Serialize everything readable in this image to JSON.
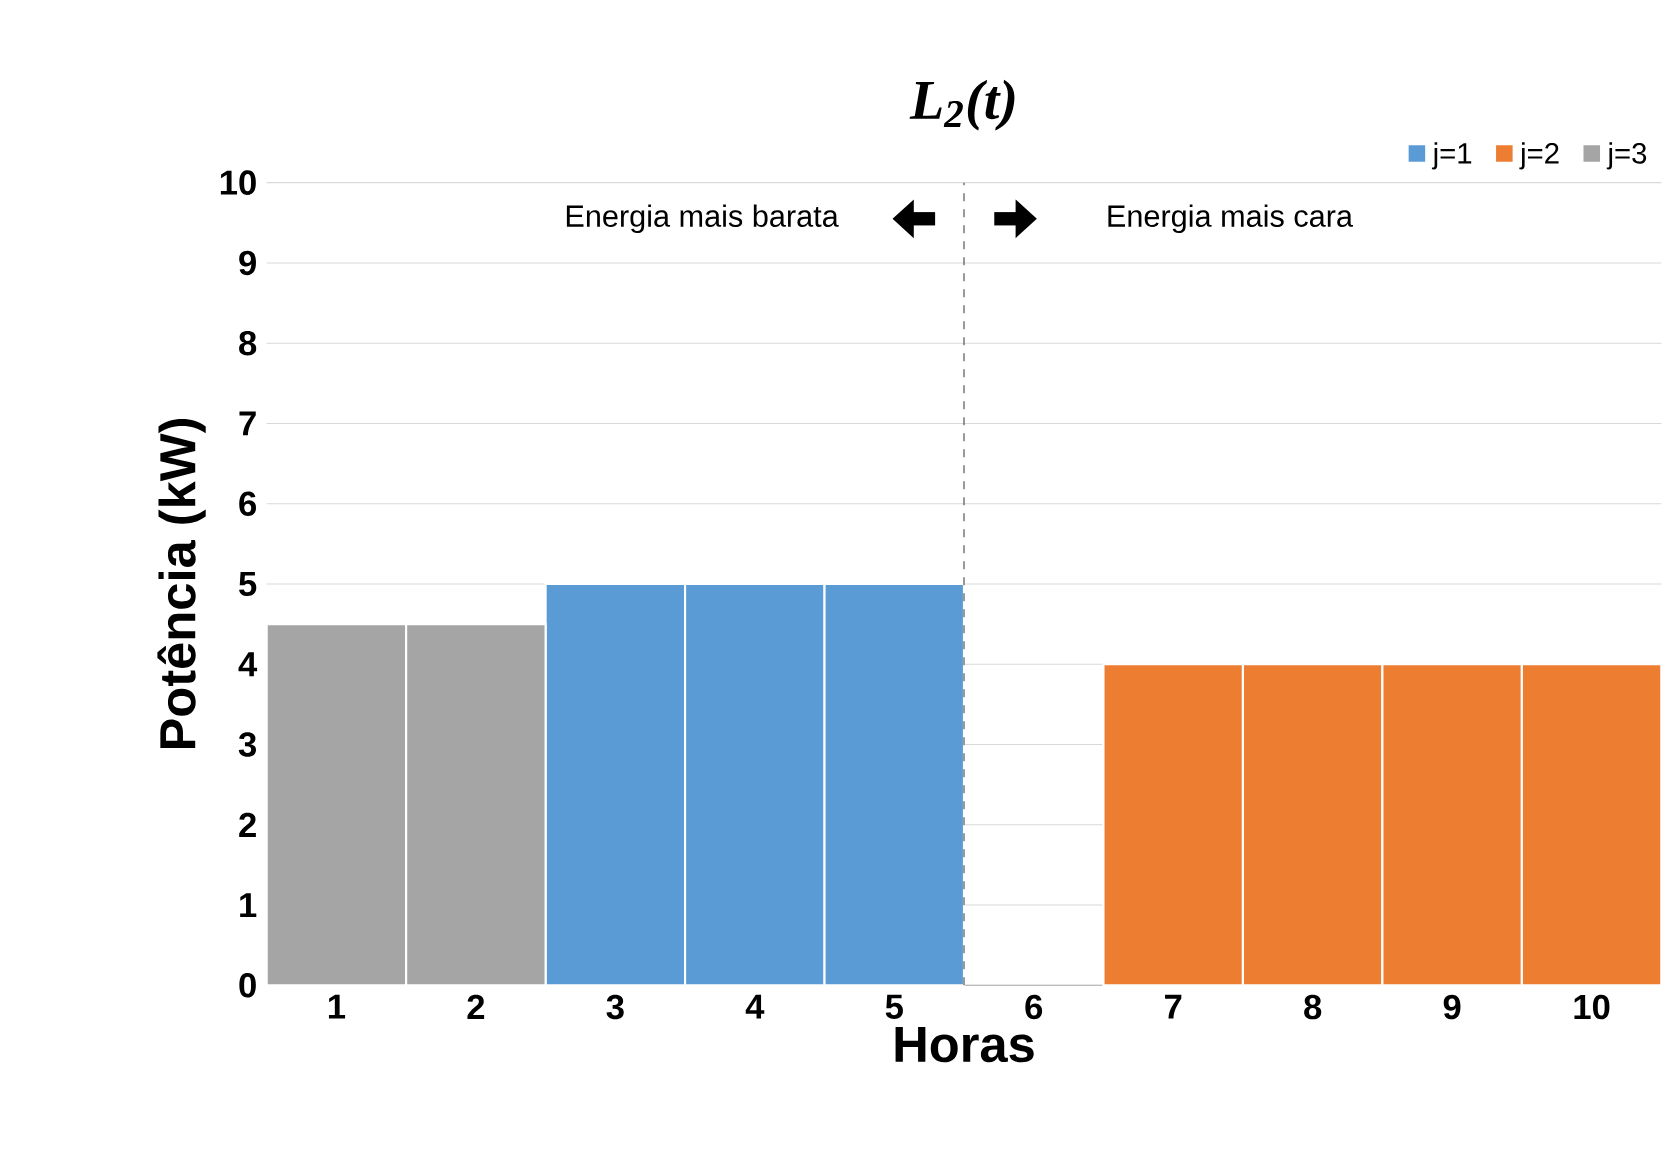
{
  "chart_data": {
    "type": "bar",
    "title": "L$_{2}$(t)",
    "xlabel": "Horas",
    "ylabel": "Potência (kW)",
    "x": [
      1,
      2,
      3,
      4,
      5,
      6,
      7,
      8,
      9,
      10
    ],
    "series": [
      {
        "name": "j=1",
        "color": "#5b9bd5",
        "values": [
          null,
          null,
          5,
          5,
          5,
          null,
          null,
          null,
          null,
          null
        ]
      },
      {
        "name": "j=2",
        "color": "#ed7d31",
        "values": [
          null,
          null,
          null,
          null,
          null,
          null,
          4,
          4,
          4,
          4
        ]
      },
      {
        "name": "j=3",
        "color": "#a5a5a5",
        "values": [
          4.5,
          4.5,
          null,
          null,
          null,
          null,
          null,
          null,
          null,
          null
        ]
      }
    ],
    "xlim": [
      0.5,
      10.5
    ],
    "xticks": [
      1,
      2,
      3,
      4,
      5,
      6,
      7,
      8,
      9,
      10
    ],
    "ylim": [
      0,
      10
    ],
    "yticks": [
      0,
      1,
      2,
      3,
      4,
      5,
      6,
      7,
      8,
      9,
      10
    ],
    "grid": "y",
    "legend": "top right",
    "ref_lines": [
      {
        "axis": "x",
        "value": 5.5,
        "line_style": "dashed",
        "color": "#404040"
      }
    ],
    "annotations": [
      "Energia mais barata",
      "Energia mais cara"
    ]
  }
}
